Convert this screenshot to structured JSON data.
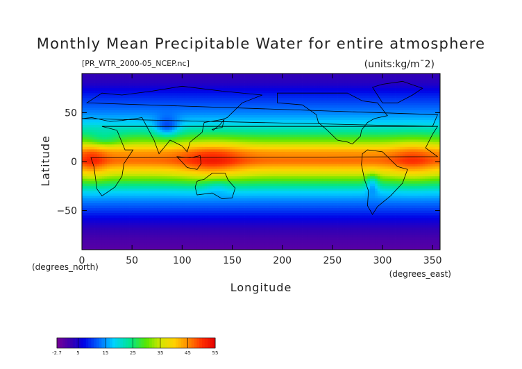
{
  "chart_data": {
    "type": "heatmap",
    "title": "Monthly Mean Precipitable Water for entire atmosphere",
    "subtitle_left": "[PR_WTR_2000-05_NCEP.nc]",
    "subtitle_right": "(units:kg/m¯2)",
    "xlabel": "Longitude",
    "ylabel": "Latitude",
    "x_unit_label": "(degrees_east)",
    "y_unit_label": "(degrees_north)",
    "xlim": [
      0,
      357.5
    ],
    "ylim": [
      -90,
      90
    ],
    "x_ticks": [
      0,
      50,
      100,
      150,
      200,
      250,
      300,
      350
    ],
    "y_ticks": [
      -50,
      0,
      50
    ],
    "colorbar": {
      "range": [
        -2.7,
        55
      ],
      "tick_values": [
        -2.7,
        5,
        15,
        25,
        35,
        45,
        55
      ],
      "tick_labels": [
        "-2.7",
        "5",
        "15",
        "25",
        "35",
        "45",
        "55"
      ]
    },
    "latitude_profile": {
      "lat": [
        90,
        80,
        70,
        60,
        50,
        40,
        30,
        20,
        10,
        0,
        -10,
        -20,
        -30,
        -40,
        -50,
        -60,
        -70,
        -80,
        -90
      ],
      "value": [
        3,
        4,
        8,
        11,
        14,
        18,
        24,
        32,
        44,
        47,
        38,
        28,
        19,
        14,
        10,
        6,
        3,
        1,
        0
      ]
    }
  }
}
